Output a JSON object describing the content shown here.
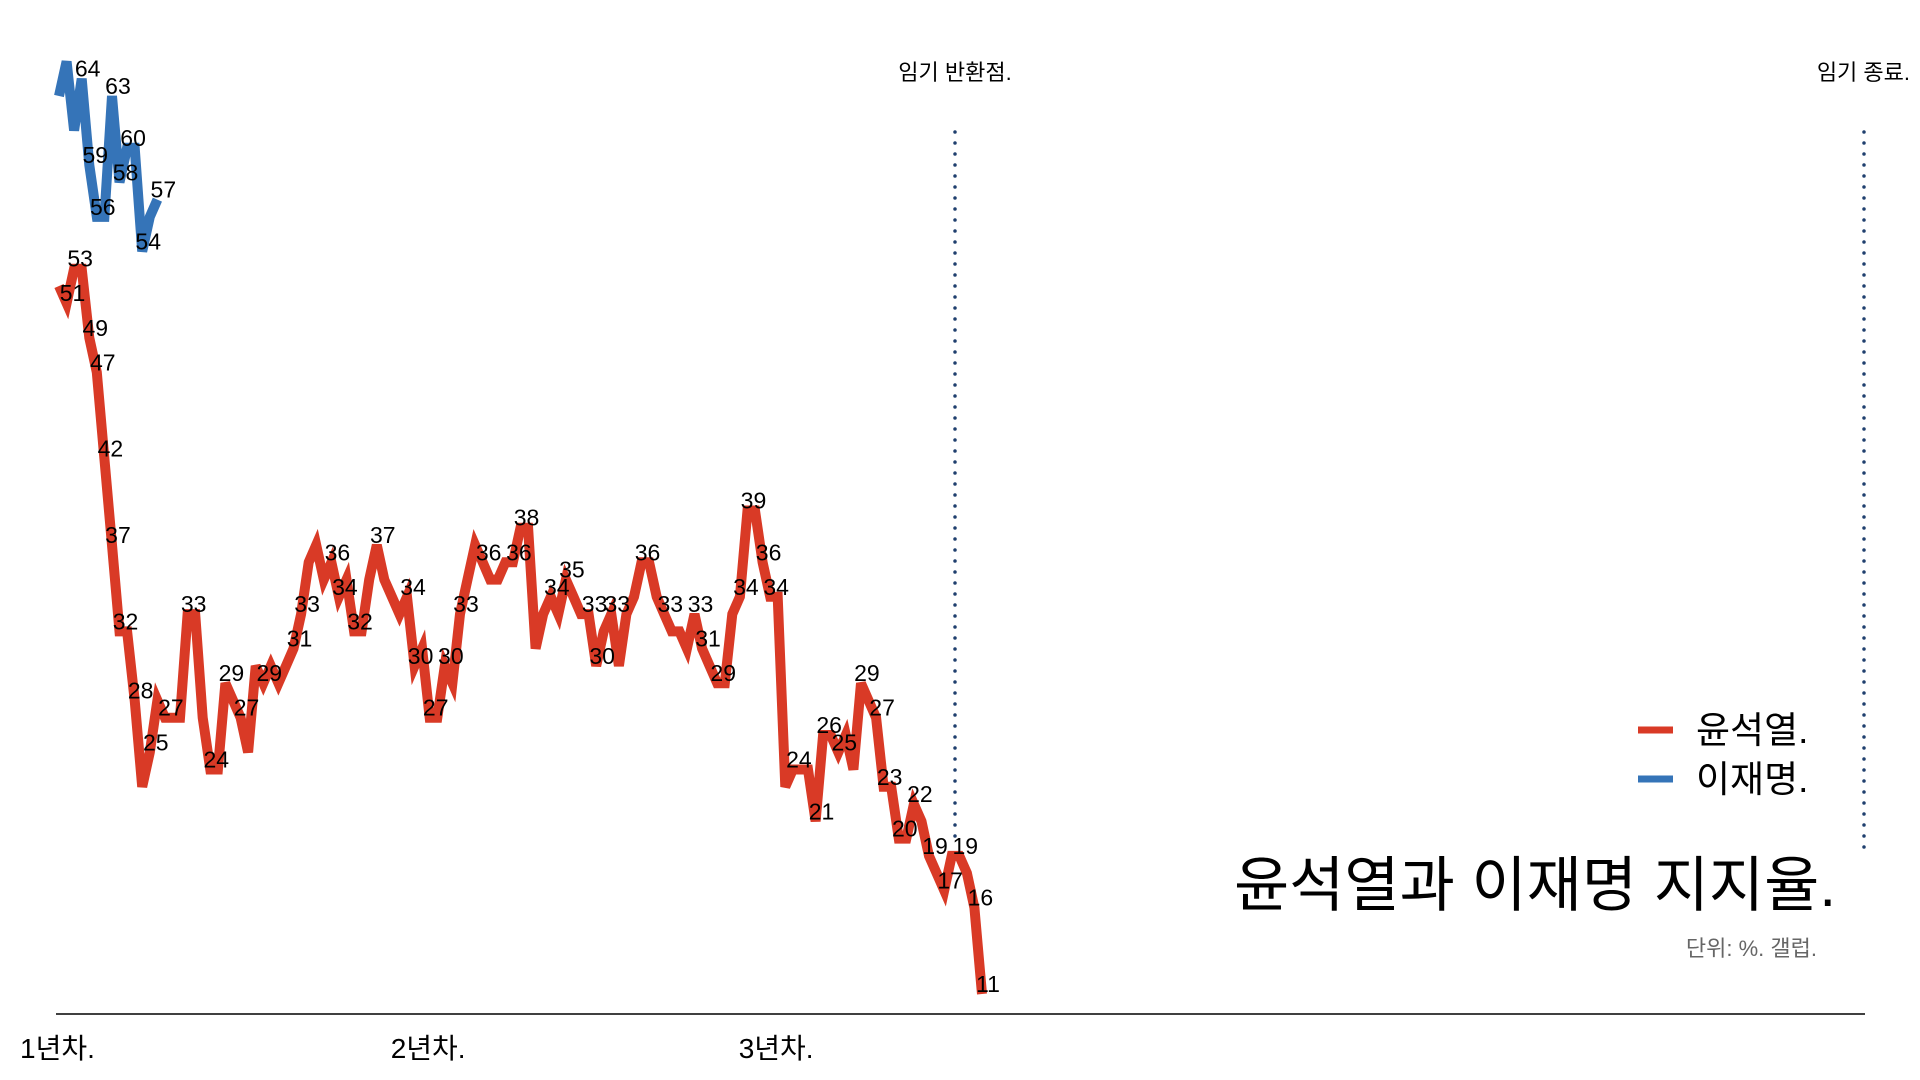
{
  "chart_data": {
    "type": "line",
    "title": "윤석열과 이재명 지지율.",
    "subtitle": "단위: %. 갤럽.",
    "xlabel": "",
    "ylabel": "",
    "ylim": [
      0,
      66
    ],
    "grid": false,
    "legend_placement": "bottom-right",
    "x_tick_labels": [
      "1년차.",
      "2년차.",
      "3년차."
    ],
    "x_tick_indices": [
      0,
      49,
      95
    ],
    "annotations": [
      {
        "label": "임기 반환점.",
        "style": "dotted vertical line"
      },
      {
        "label": "임기 종료.",
        "style": "dotted vertical line"
      }
    ],
    "series": [
      {
        "name": "윤석열.",
        "color": "#d93a26",
        "values": [
          52,
          51,
          53,
          53,
          49,
          47,
          42,
          37,
          32,
          32,
          28,
          23,
          25,
          28,
          27,
          27,
          27,
          33,
          33,
          27,
          24,
          24,
          29,
          28,
          27,
          25,
          30,
          29,
          30,
          29,
          30,
          31,
          33,
          36,
          37,
          35,
          36,
          34,
          35,
          32,
          32,
          35,
          37,
          35,
          34,
          33,
          34,
          30,
          31,
          27,
          27,
          30,
          29,
          33,
          35,
          37,
          36,
          35,
          35,
          36,
          36,
          38,
          38,
          31,
          33,
          34,
          33,
          35,
          34,
          33,
          33,
          30,
          32,
          33,
          30,
          33,
          34,
          36,
          36,
          34,
          33,
          32,
          32,
          31,
          33,
          31,
          30,
          29,
          29,
          33,
          34,
          39,
          39,
          36,
          34,
          34,
          23,
          24,
          24,
          24,
          21,
          26,
          26,
          25,
          26,
          24,
          29,
          28,
          27,
          23,
          23,
          20,
          20,
          22,
          21,
          19,
          18,
          17,
          19,
          19,
          18,
          16,
          11
        ],
        "labeled_indices": [
          1,
          2,
          4,
          5,
          6,
          7,
          8,
          10,
          12,
          14,
          17,
          20,
          22,
          24,
          27,
          31,
          32,
          36,
          37,
          39,
          42,
          46,
          47,
          49,
          51,
          53,
          56,
          60,
          61,
          65,
          67,
          70,
          71,
          73,
          77,
          80,
          84,
          85,
          87,
          90,
          91,
          93,
          94,
          97,
          100,
          101,
          103,
          106,
          108,
          109,
          111,
          113,
          115,
          117,
          119,
          121,
          122
        ]
      },
      {
        "name": "이재명.",
        "color": "#3574b8",
        "values": [
          63,
          65,
          61,
          64,
          59,
          56,
          56,
          63,
          58,
          60,
          60,
          54,
          56,
          57
        ],
        "labeled_indices": [
          3,
          4,
          5,
          7,
          8,
          9,
          11,
          13
        ]
      }
    ],
    "annotation_color": "#1f3f6e"
  }
}
